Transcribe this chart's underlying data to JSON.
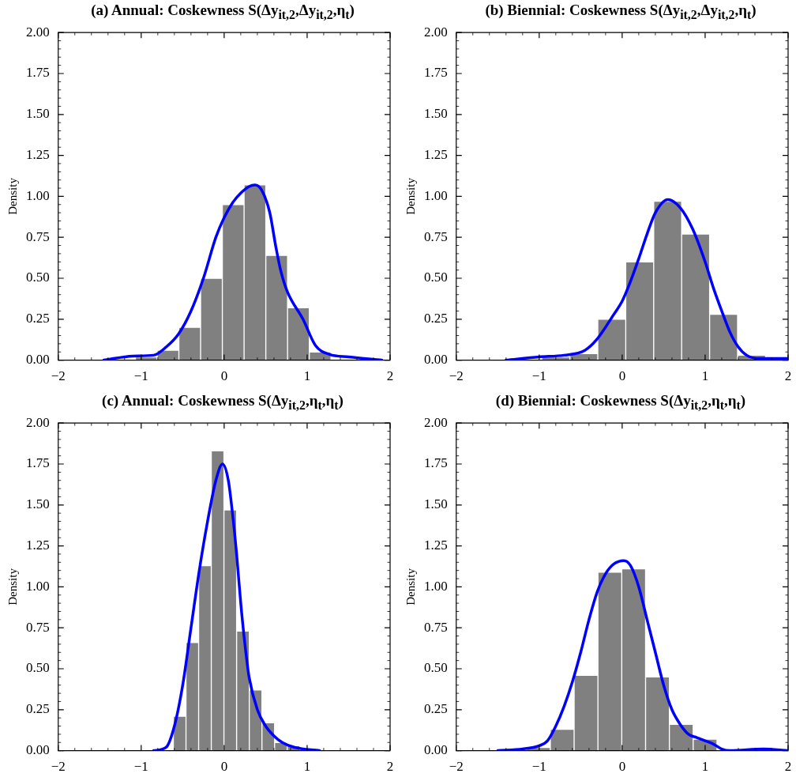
{
  "chart_data": [
    {
      "type": "histogram",
      "title": "(a) Annual: Coskewness S(Δy$_{it,2}$,Δy$_{it,2}$,η$_{t}$)",
      "ylabel": "Density",
      "xlim": [
        -2,
        2
      ],
      "xticks": [
        -2,
        -1,
        0,
        1,
        2
      ],
      "ylim": [
        0,
        2
      ],
      "yticks": [
        {
          "value": 0,
          "label": "0.00"
        },
        {
          "value": 0.25,
          "label": "0.25"
        },
        {
          "value": 0.5,
          "label": "0.50"
        },
        {
          "value": 0.75,
          "label": "0.75"
        },
        {
          "value": 1,
          "label": "1.00"
        },
        {
          "value": 1.25,
          "label": "1.25"
        },
        {
          "value": 1.5,
          "label": "1.50"
        },
        {
          "value": 1.75,
          "label": "1.75"
        },
        {
          "value": 2,
          "label": "2.00"
        }
      ],
      "series": [
        {
          "type": "histogram",
          "color": "#808080",
          "bins": [
            -1.07,
            -0.808,
            -0.546,
            -0.284,
            -0.022,
            0.24,
            0.502,
            0.764,
            1.026,
            1.288
          ],
          "values": [
            0.02,
            0.06,
            0.2,
            0.5,
            0.95,
            1.07,
            0.64,
            0.32,
            0.05
          ]
        },
        {
          "type": "line",
          "color": "#0000ff",
          "x": [
            -1.45,
            -1.1,
            -0.85,
            -0.7,
            -0.55,
            -0.4,
            -0.25,
            -0.1,
            0,
            0.1,
            0.2,
            0.3,
            0.37,
            0.45,
            0.55,
            0.62,
            0.68,
            0.76,
            0.95,
            1.1,
            1.27,
            1.5,
            1.9
          ],
          "values": [
            0,
            0.025,
            0.03,
            0.08,
            0.16,
            0.3,
            0.5,
            0.75,
            0.87,
            0.96,
            1.02,
            1.06,
            1.07,
            1.04,
            0.9,
            0.7,
            0.55,
            0.42,
            0.25,
            0.09,
            0.035,
            0.02,
            0
          ]
        }
      ]
    },
    {
      "type": "histogram",
      "title": "(b) Biennial: Coskewness S(Δy$_{it,2}$,Δy$_{it,2}$,η$_{t}$)",
      "ylabel": "Density",
      "xlim": [
        -2,
        2
      ],
      "xticks": [
        -2,
        -1,
        0,
        1,
        2
      ],
      "ylim": [
        0,
        2
      ],
      "yticks": [
        {
          "value": 0,
          "label": "0.00"
        },
        {
          "value": 0.25,
          "label": "0.25"
        },
        {
          "value": 0.5,
          "label": "0.50"
        },
        {
          "value": 0.75,
          "label": "0.75"
        },
        {
          "value": 1,
          "label": "1.00"
        },
        {
          "value": 1.25,
          "label": "1.25"
        },
        {
          "value": 1.5,
          "label": "1.50"
        },
        {
          "value": 1.75,
          "label": "1.75"
        },
        {
          "value": 2,
          "label": "2.00"
        }
      ],
      "series": [
        {
          "type": "histogram",
          "color": "#808080",
          "bins": [
            -0.968,
            -0.631,
            -0.294,
            0.043,
            0.38,
            0.717,
            1.054,
            1.391,
            1.728
          ],
          "values": [
            0.02,
            0.04,
            0.25,
            0.6,
            0.97,
            0.77,
            0.28,
            0.03
          ]
        },
        {
          "type": "line",
          "color": "#0000ff",
          "x": [
            -1.4,
            -1.0,
            -0.7,
            -0.45,
            -0.3,
            -0.1,
            0,
            0.1,
            0.2,
            0.3,
            0.4,
            0.55,
            0.7,
            0.85,
            1.0,
            1.1,
            1.2,
            1.3,
            1.4,
            1.5,
            1.65,
            2.0
          ],
          "values": [
            0,
            0.02,
            0.03,
            0.06,
            0.13,
            0.28,
            0.36,
            0.48,
            0.62,
            0.77,
            0.9,
            0.98,
            0.93,
            0.8,
            0.6,
            0.44,
            0.3,
            0.17,
            0.08,
            0.03,
            0.01,
            0.01
          ]
        }
      ]
    },
    {
      "type": "histogram",
      "title": "(c) Annual: Coskewness S(Δy$_{it,2}$,η$_{t}$,η$_{t}$)",
      "ylabel": "Density",
      "xlim": [
        -2,
        2
      ],
      "xticks": [
        -2,
        -1,
        0,
        1,
        2
      ],
      "ylim": [
        0,
        2
      ],
      "yticks": [
        {
          "value": 0,
          "label": "0.00"
        },
        {
          "value": 0.25,
          "label": "0.25"
        },
        {
          "value": 0.5,
          "label": "0.50"
        },
        {
          "value": 0.75,
          "label": "0.75"
        },
        {
          "value": 1,
          "label": "1.00"
        },
        {
          "value": 1.25,
          "label": "1.25"
        },
        {
          "value": 1.5,
          "label": "1.50"
        },
        {
          "value": 1.75,
          "label": "1.75"
        },
        {
          "value": 2,
          "label": "2.00"
        }
      ],
      "series": [
        {
          "type": "histogram",
          "color": "#808080",
          "bins": [
            -0.613,
            -0.46,
            -0.308,
            -0.155,
            -0.003,
            0.15,
            0.303,
            0.455,
            0.608,
            0.76,
            0.913
          ],
          "values": [
            0.21,
            0.66,
            1.13,
            1.83,
            1.47,
            0.73,
            0.37,
            0.17,
            0.05,
            0.03
          ]
        },
        {
          "type": "line",
          "color": "#0000ff",
          "x": [
            -0.85,
            -0.7,
            -0.6,
            -0.5,
            -0.4,
            -0.3,
            -0.2,
            -0.1,
            -0.02,
            0.05,
            0.1,
            0.15,
            0.2,
            0.25,
            0.3,
            0.4,
            0.5,
            0.6,
            0.7,
            0.85,
            1.15
          ],
          "values": [
            0,
            0.02,
            0.15,
            0.4,
            0.75,
            1.1,
            1.4,
            1.65,
            1.75,
            1.65,
            1.45,
            1.2,
            0.9,
            0.65,
            0.45,
            0.25,
            0.15,
            0.09,
            0.05,
            0.02,
            0
          ]
        }
      ]
    },
    {
      "type": "histogram",
      "title": "(d) Biennial: Coskewness S(Δy$_{it,2}$,η$_{t}$,η$_{t}$)",
      "ylabel": "Density",
      "xlim": [
        -2,
        2
      ],
      "xticks": [
        -2,
        -1,
        0,
        1,
        2
      ],
      "ylim": [
        0,
        2
      ],
      "yticks": [
        {
          "value": 0,
          "label": "0.00"
        },
        {
          "value": 0.25,
          "label": "0.25"
        },
        {
          "value": 0.5,
          "label": "0.50"
        },
        {
          "value": 0.75,
          "label": "0.75"
        },
        {
          "value": 1,
          "label": "1.00"
        },
        {
          "value": 1.25,
          "label": "1.25"
        },
        {
          "value": 1.5,
          "label": "1.50"
        },
        {
          "value": 1.75,
          "label": "1.75"
        },
        {
          "value": 2,
          "label": "2.00"
        }
      ],
      "series": [
        {
          "type": "histogram",
          "color": "#808080",
          "bins": [
            -1.153,
            -0.866,
            -0.579,
            -0.292,
            -0.005,
            0.282,
            0.569,
            0.856,
            1.143
          ],
          "values": [
            0.02,
            0.13,
            0.46,
            1.09,
            1.11,
            0.45,
            0.16,
            0.07
          ]
        },
        {
          "type": "line",
          "color": "#0000ff",
          "x": [
            -1.5,
            -1.2,
            -1.0,
            -0.9,
            -0.8,
            -0.7,
            -0.6,
            -0.5,
            -0.4,
            -0.3,
            -0.2,
            -0.1,
            0.02,
            0.1,
            0.2,
            0.3,
            0.4,
            0.5,
            0.6,
            0.7,
            0.8,
            0.9,
            1.0,
            1.1,
            1.2,
            1.3,
            1.7,
            2.0
          ],
          "values": [
            0,
            0.01,
            0.03,
            0.06,
            0.15,
            0.27,
            0.42,
            0.6,
            0.8,
            0.97,
            1.08,
            1.14,
            1.16,
            1.13,
            1.0,
            0.8,
            0.6,
            0.4,
            0.25,
            0.16,
            0.1,
            0.08,
            0.06,
            0.04,
            0.01,
            0,
            0.01,
            0
          ]
        }
      ]
    }
  ]
}
